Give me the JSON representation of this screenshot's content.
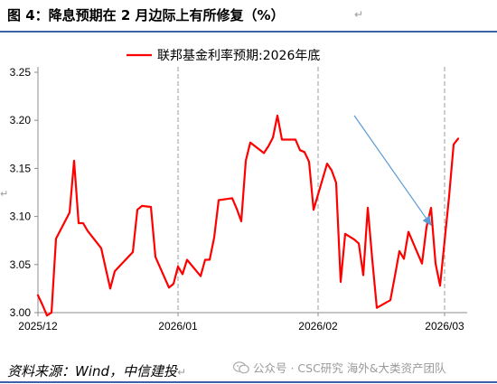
{
  "figure": {
    "title": "图 4：降息预期在 2 月边际上有所修复（%）",
    "return_mark": "↵",
    "source": "资料来源：Wind，中信建投",
    "watermark": "公众号 · CSC研究 海外&大类资产团队"
  },
  "chart_data": {
    "type": "line",
    "xlabel": "",
    "ylabel": "",
    "ylim": [
      3.0,
      3.25
    ],
    "yticks": [
      3.0,
      3.05,
      3.1,
      3.15,
      3.2,
      3.25
    ],
    "ytick_labels": [
      "3.00",
      "3.05",
      "3.10",
      "3.15",
      "3.20",
      "3.25"
    ],
    "xlim": [
      "2025-12-01",
      "2026-03-06"
    ],
    "xtick_labels": [
      "2025/12",
      "2026/01",
      "2026/02",
      "2026/03"
    ],
    "xticks": [
      "2025-12-01",
      "2026-01-01",
      "2026-02-01",
      "2026-03-01"
    ],
    "vlines": [
      "2026-01-01",
      "2026-02-01",
      "2026-03-01"
    ],
    "legend": "top-center",
    "series": [
      {
        "name": "联邦基金利率预期:2026年底",
        "color": "#ff0000",
        "points": [
          [
            "2025-12-01",
            3.018
          ],
          [
            "2025-12-02",
            3.008
          ],
          [
            "2025-12-03",
            2.997
          ],
          [
            "2025-12-04",
            3.0
          ],
          [
            "2025-12-05",
            3.077
          ],
          [
            "2025-12-08",
            3.104
          ],
          [
            "2025-12-09",
            3.158
          ],
          [
            "2025-12-10",
            3.093
          ],
          [
            "2025-12-11",
            3.093
          ],
          [
            "2025-12-12",
            3.085
          ],
          [
            "2025-12-15",
            3.067
          ],
          [
            "2025-12-16",
            3.046
          ],
          [
            "2025-12-17",
            3.025
          ],
          [
            "2025-12-18",
            3.043
          ],
          [
            "2025-12-19",
            3.048
          ],
          [
            "2025-12-22",
            3.063
          ],
          [
            "2025-12-23",
            3.107
          ],
          [
            "2025-12-24",
            3.111
          ],
          [
            "2025-12-26",
            3.11
          ],
          [
            "2025-12-27",
            3.058
          ],
          [
            "2025-12-30",
            3.026
          ],
          [
            "2025-12-31",
            3.03
          ],
          [
            "2026-01-01",
            3.048
          ],
          [
            "2026-01-02",
            3.04
          ],
          [
            "2026-01-03",
            3.055
          ],
          [
            "2026-01-06",
            3.038
          ],
          [
            "2026-01-07",
            3.055
          ],
          [
            "2026-01-08",
            3.055
          ],
          [
            "2026-01-09",
            3.078
          ],
          [
            "2026-01-10",
            3.117
          ],
          [
            "2026-01-13",
            3.119
          ],
          [
            "2026-01-14",
            3.108
          ],
          [
            "2026-01-15",
            3.095
          ],
          [
            "2026-01-16",
            3.158
          ],
          [
            "2026-01-17",
            3.177
          ],
          [
            "2026-01-20",
            3.166
          ],
          [
            "2026-01-21",
            3.173
          ],
          [
            "2026-01-22",
            3.182
          ],
          [
            "2026-01-23",
            3.205
          ],
          [
            "2026-01-24",
            3.18
          ],
          [
            "2026-01-27",
            3.18
          ],
          [
            "2026-01-28",
            3.169
          ],
          [
            "2026-01-29",
            3.167
          ],
          [
            "2026-01-30",
            3.157
          ],
          [
            "2026-01-31",
            3.107
          ],
          [
            "2026-02-03",
            3.155
          ],
          [
            "2026-02-04",
            3.148
          ],
          [
            "2026-02-05",
            3.135
          ],
          [
            "2026-02-06",
            3.032
          ],
          [
            "2026-02-07",
            3.082
          ],
          [
            "2026-02-09",
            3.076
          ],
          [
            "2026-02-10",
            3.072
          ],
          [
            "2026-02-11",
            3.039
          ],
          [
            "2026-02-12",
            3.109
          ],
          [
            "2026-02-13",
            3.055
          ],
          [
            "2026-02-14",
            3.005
          ],
          [
            "2026-02-17",
            3.013
          ],
          [
            "2026-02-18",
            3.038
          ],
          [
            "2026-02-19",
            3.064
          ],
          [
            "2026-02-20",
            3.056
          ],
          [
            "2026-02-21",
            3.084
          ],
          [
            "2026-02-24",
            3.051
          ],
          [
            "2026-02-25",
            3.089
          ],
          [
            "2026-02-26",
            3.109
          ],
          [
            "2026-02-27",
            3.051
          ],
          [
            "2026-02-28",
            3.028
          ],
          [
            "2026-03-02",
            3.121
          ],
          [
            "2026-03-03",
            3.175
          ],
          [
            "2026-03-04",
            3.181
          ]
        ]
      }
    ],
    "annotation": {
      "type": "arrow",
      "color": "#5b9bd5",
      "from": [
        "2026-02-09",
        3.205
      ],
      "to": [
        "2026-02-26",
        3.091
      ]
    }
  }
}
